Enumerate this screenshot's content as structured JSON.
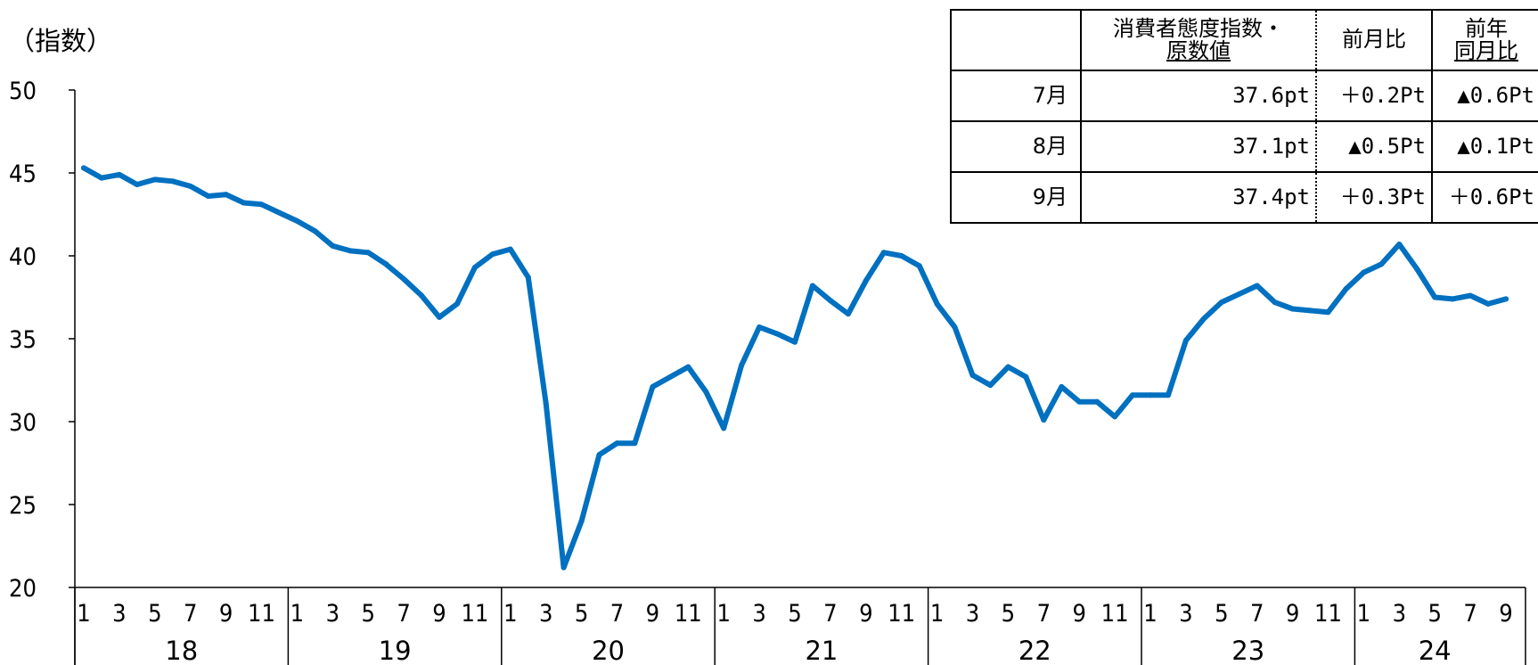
{
  "chart_data": {
    "type": "line",
    "ylabel": "（指数）",
    "ylim": [
      20,
      50
    ],
    "yticks": [
      20,
      25,
      30,
      35,
      40,
      45,
      50
    ],
    "years": [
      "18",
      "19",
      "20",
      "21",
      "22",
      "23",
      "24"
    ],
    "month_tick_labels": [
      "1",
      "3",
      "5",
      "7",
      "9",
      "11"
    ],
    "series": [
      {
        "color": "#0070C0",
        "values": [
          45.3,
          44.7,
          44.9,
          44.3,
          44.6,
          44.5,
          44.2,
          43.6,
          43.7,
          43.2,
          43.1,
          42.6,
          42.1,
          41.5,
          40.6,
          40.3,
          40.2,
          39.5,
          38.6,
          37.6,
          36.3,
          37.1,
          39.3,
          40.1,
          40.4,
          38.7,
          31.1,
          21.2,
          24.0,
          28.0,
          28.7,
          28.7,
          32.1,
          32.7,
          33.3,
          31.8,
          29.6,
          33.4,
          35.7,
          35.3,
          34.8,
          38.2,
          37.3,
          36.5,
          38.5,
          40.2,
          40.0,
          39.4,
          37.1,
          35.7,
          32.8,
          32.2,
          33.3,
          32.7,
          30.1,
          32.1,
          31.2,
          31.2,
          30.3,
          31.6,
          31.6,
          31.6,
          34.9,
          36.2,
          37.2,
          37.7,
          38.2,
          37.2,
          36.8,
          36.7,
          36.6,
          38.0,
          39.0,
          39.5,
          40.7,
          39.2,
          37.5,
          37.4,
          37.6,
          37.1,
          37.4
        ]
      }
    ]
  },
  "table": {
    "headers": {
      "blank": "",
      "index_line1": "消費者態度指数・",
      "index_line2": "原数値",
      "mom": "前月比",
      "yoy_line1": "前年",
      "yoy_line2": "同月比"
    },
    "rows": [
      {
        "month": "7月",
        "value": "37.6pt",
        "mom": "＋0.2Pt",
        "yoy": "▲0.6Pt"
      },
      {
        "month": "8月",
        "value": "37.1pt",
        "mom": "▲0.5Pt",
        "yoy": "▲0.1Pt"
      },
      {
        "month": "9月",
        "value": "37.4pt",
        "mom": "＋0.3Pt",
        "yoy": "＋0.6Pt"
      }
    ]
  }
}
